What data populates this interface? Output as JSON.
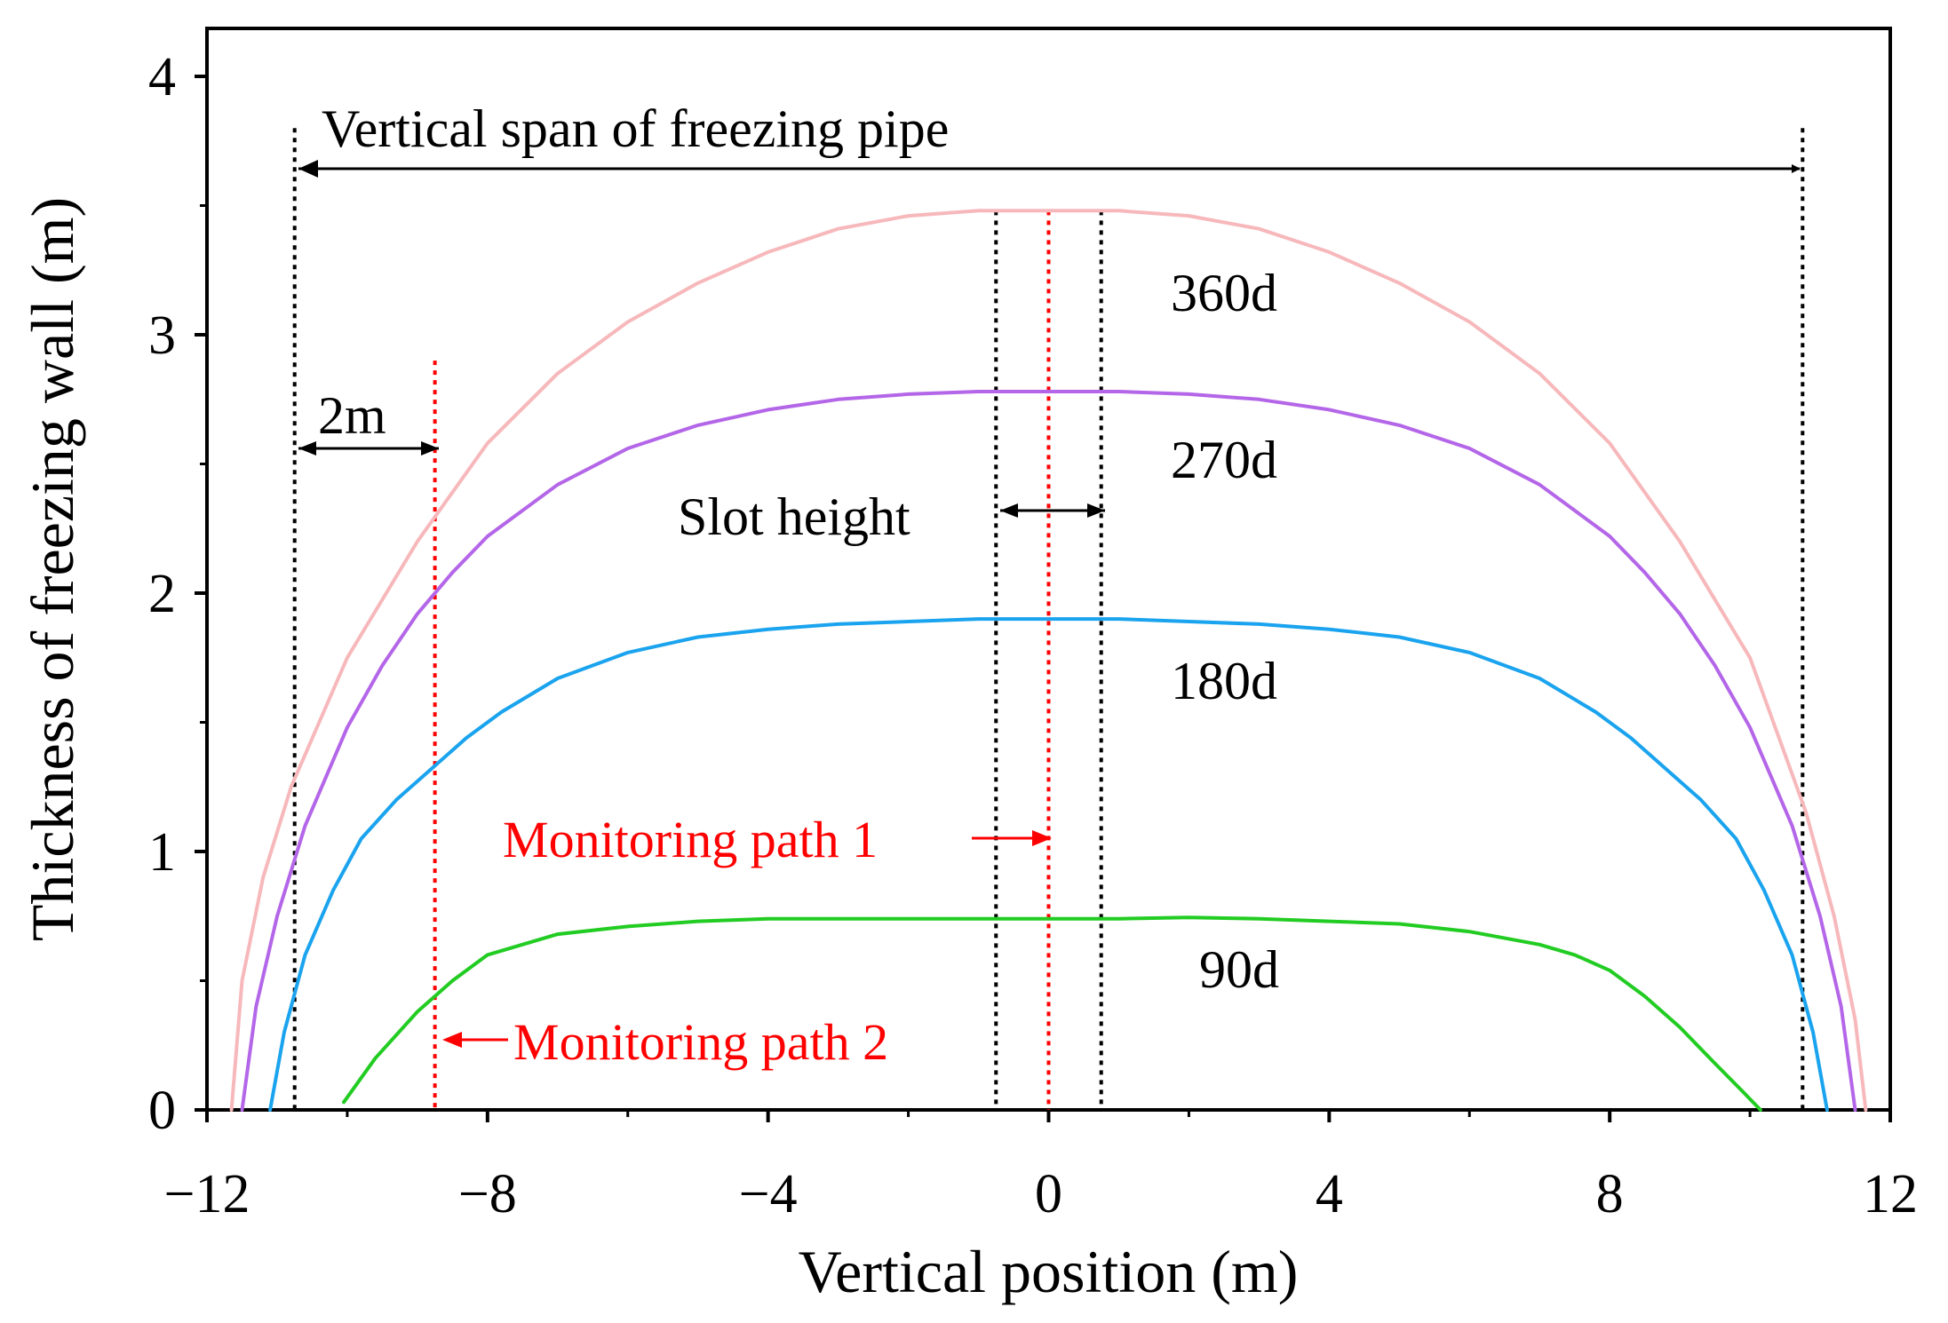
{
  "chart_data": {
    "type": "line",
    "xlabel": "Vertical position (m)",
    "ylabel": "Thickness of freezing wall (m)",
    "xlim": [
      -12,
      12
    ],
    "ylim": [
      0,
      4.2
    ],
    "xticks": [
      -12,
      -8,
      -4,
      0,
      4,
      8,
      12
    ],
    "xtick_labels": [
      "−12",
      "−8",
      "−4",
      "0",
      "4",
      "8",
      "12"
    ],
    "yticks": [
      0,
      1,
      2,
      3,
      4
    ],
    "ytick_labels": [
      "0",
      "1",
      "2",
      "3",
      "4"
    ],
    "series": [
      {
        "name": "360d",
        "color": "#f7b8bb",
        "x": [
          -11.65,
          -11.5,
          -11.2,
          -10.8,
          -10.0,
          -9.0,
          -8.0,
          -7.0,
          -6.0,
          -5.0,
          -4.0,
          -3.0,
          -2.0,
          -1.0,
          0.0,
          1.0,
          2.0,
          3.0,
          4.0,
          5.0,
          6.0,
          7.0,
          8.0,
          9.0,
          10.0,
          10.8,
          11.2,
          11.5,
          11.65
        ],
        "y": [
          0.0,
          0.5,
          0.9,
          1.25,
          1.75,
          2.2,
          2.58,
          2.85,
          3.05,
          3.2,
          3.32,
          3.41,
          3.46,
          3.48,
          3.48,
          3.48,
          3.46,
          3.41,
          3.32,
          3.2,
          3.05,
          2.85,
          2.58,
          2.2,
          1.75,
          1.15,
          0.75,
          0.35,
          0.0
        ]
      },
      {
        "name": "270d",
        "color": "#b466e8",
        "x": [
          -11.5,
          -11.3,
          -11.0,
          -10.6,
          -10.0,
          -9.5,
          -9.0,
          -8.5,
          -8.0,
          -7.0,
          -6.0,
          -5.0,
          -4.0,
          -3.0,
          -2.0,
          -1.0,
          0.0,
          1.0,
          2.0,
          3.0,
          4.0,
          5.0,
          6.0,
          7.0,
          8.0,
          8.5,
          9.0,
          9.5,
          10.0,
          10.6,
          11.0,
          11.3,
          11.5
        ],
        "y": [
          0.0,
          0.4,
          0.75,
          1.1,
          1.48,
          1.72,
          1.92,
          2.08,
          2.22,
          2.42,
          2.56,
          2.65,
          2.71,
          2.75,
          2.77,
          2.78,
          2.78,
          2.78,
          2.77,
          2.75,
          2.71,
          2.65,
          2.56,
          2.42,
          2.22,
          2.08,
          1.92,
          1.72,
          1.48,
          1.1,
          0.75,
          0.4,
          0.0
        ]
      },
      {
        "name": "180d",
        "color": "#1aa3ee",
        "x": [
          -11.1,
          -10.9,
          -10.6,
          -10.2,
          -9.8,
          -9.3,
          -8.8,
          -8.3,
          -7.8,
          -7.0,
          -6.0,
          -5.0,
          -4.0,
          -3.0,
          -2.0,
          -1.0,
          0.0,
          1.0,
          2.0,
          3.0,
          4.0,
          5.0,
          6.0,
          7.0,
          7.8,
          8.3,
          8.8,
          9.3,
          9.8,
          10.2,
          10.6,
          10.9,
          11.1
        ],
        "y": [
          0.0,
          0.3,
          0.6,
          0.85,
          1.05,
          1.2,
          1.32,
          1.44,
          1.54,
          1.67,
          1.77,
          1.83,
          1.86,
          1.88,
          1.89,
          1.9,
          1.9,
          1.9,
          1.89,
          1.88,
          1.86,
          1.83,
          1.77,
          1.67,
          1.54,
          1.44,
          1.32,
          1.2,
          1.05,
          0.85,
          0.6,
          0.3,
          0.0
        ]
      },
      {
        "name": "90d",
        "color": "#22cc22",
        "x": [
          -10.05,
          -9.6,
          -9.0,
          -8.5,
          -8.0,
          -7.0,
          -6.0,
          -5.0,
          -4.0,
          -3.0,
          -2.0,
          -1.0,
          0.0,
          1.0,
          2.0,
          3.0,
          4.0,
          5.0,
          6.0,
          7.0,
          7.5,
          8.0,
          8.5,
          9.0,
          9.5,
          9.9,
          10.15
        ],
        "y": [
          0.03,
          0.2,
          0.38,
          0.5,
          0.6,
          0.68,
          0.71,
          0.73,
          0.74,
          0.74,
          0.74,
          0.74,
          0.74,
          0.74,
          0.745,
          0.74,
          0.73,
          0.72,
          0.69,
          0.64,
          0.6,
          0.54,
          0.44,
          0.32,
          0.18,
          0.07,
          0.0
        ]
      }
    ],
    "reference_lines": [
      {
        "name": "vertical-span-left",
        "x": -10.75,
        "y_top": 3.8,
        "color": "#000000",
        "style": "dotted"
      },
      {
        "name": "vertical-span-right",
        "x": 10.75,
        "y_top": 3.8,
        "color": "#000000",
        "style": "dotted"
      },
      {
        "name": "slot-left",
        "x": -0.75,
        "y_top": 3.48,
        "color": "#000000",
        "style": "dotted"
      },
      {
        "name": "slot-right",
        "x": 0.75,
        "y_top": 3.48,
        "color": "#000000",
        "style": "dotted"
      },
      {
        "name": "monitoring-path-1",
        "x": 0.0,
        "y_top": 3.48,
        "color": "#ff0000",
        "style": "dotted"
      },
      {
        "name": "monitoring-path-2",
        "x": -8.75,
        "y_top": 2.9,
        "color": "#ff0000",
        "style": "dotted"
      }
    ],
    "annotations": {
      "vertical_span": "Vertical span of freezing pipe",
      "two_m": "2m",
      "slot_height": "Slot height",
      "monitoring_path_1": "Monitoring path 1",
      "monitoring_path_2": "Monitoring path 2"
    },
    "curve_labels": [
      "360d",
      "270d",
      "180d",
      "90d"
    ]
  }
}
